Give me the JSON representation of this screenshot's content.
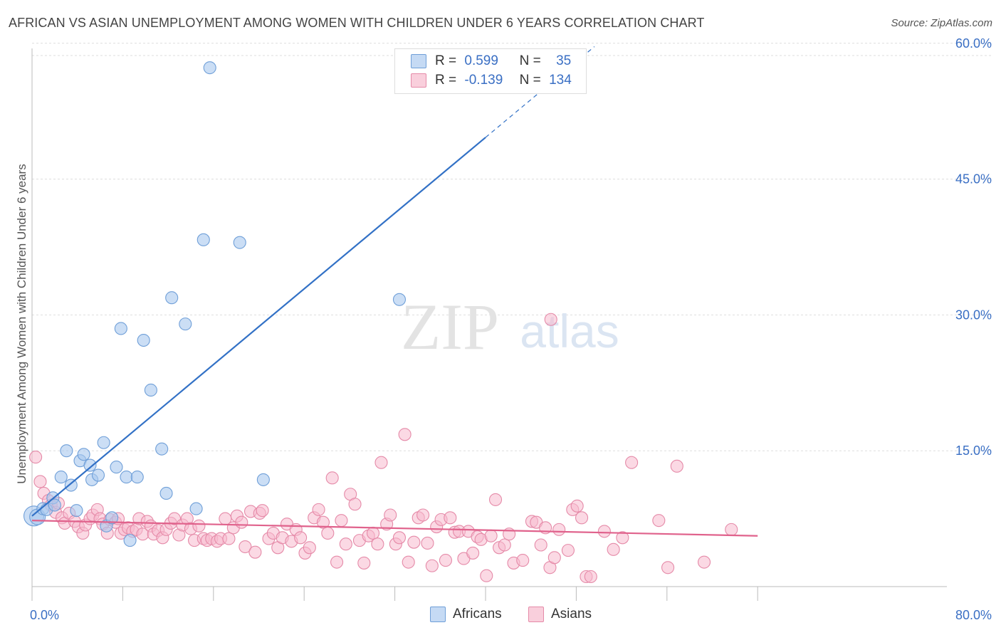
{
  "title": "AFRICAN VS ASIAN UNEMPLOYMENT AMONG WOMEN WITH CHILDREN UNDER 6 YEARS CORRELATION CHART",
  "source": "Source: ZipAtlas.com",
  "watermark": {
    "zip": "ZIP",
    "atlas": "atlas"
  },
  "legend": {
    "africans": {
      "r_label": "R =",
      "r_value": "0.599",
      "n_label": "N =",
      "n_value": "35"
    },
    "asians": {
      "r_label": "R =",
      "r_value": "-0.139",
      "n_label": "N =",
      "n_value": "134"
    }
  },
  "colors": {
    "africans_fill": "#a9c8ef",
    "africans_stroke": "#6f9fd8",
    "africans_line": "#3271c6",
    "asians_fill": "#f7b9cd",
    "asians_stroke": "#e58aa8",
    "asians_line": "#e0628c",
    "grid": "#dddddd",
    "tick_text": "#3a6fc4"
  },
  "chart_data": {
    "type": "scatter",
    "title": "AFRICAN VS ASIAN UNEMPLOYMENT AMONG WOMEN WITH CHILDREN UNDER 6 YEARS CORRELATION CHART",
    "xlabel": "",
    "ylabel": "Unemployment Among Women with Children Under 6 years",
    "xlim": [
      0,
      80
    ],
    "ylim": [
      0,
      62
    ],
    "x_tick_labels": [
      "0.0%",
      "80.0%"
    ],
    "y_ticks": [
      15,
      30,
      45,
      60
    ],
    "y_tick_labels": [
      "15.0%",
      "30.0%",
      "45.0%",
      "60.0%"
    ],
    "legend_position": "bottom",
    "series": [
      {
        "name": "Africans",
        "r": 0.599,
        "n": 35,
        "trend": {
          "x0": 0,
          "y0": 7.8,
          "x1": 50,
          "y1": 49.6,
          "dashed_to_x": 62
        },
        "points": [
          [
            0.2,
            7.8
          ],
          [
            0.6,
            7.7
          ],
          [
            1.2,
            8.6
          ],
          [
            1.6,
            8.5
          ],
          [
            2.3,
            9.8
          ],
          [
            2.5,
            9
          ],
          [
            3.2,
            12.1
          ],
          [
            3.8,
            15
          ],
          [
            4.3,
            11.2
          ],
          [
            4.9,
            8.4
          ],
          [
            5.3,
            13.9
          ],
          [
            5.7,
            14.6
          ],
          [
            6.4,
            13.4
          ],
          [
            6.6,
            11.8
          ],
          [
            7.3,
            12.3
          ],
          [
            7.9,
            15.9
          ],
          [
            8.2,
            6.7
          ],
          [
            8.8,
            7.6
          ],
          [
            9.3,
            13.2
          ],
          [
            9.8,
            28.5
          ],
          [
            10.4,
            12.1
          ],
          [
            10.8,
            5.1
          ],
          [
            11.6,
            12.1
          ],
          [
            12.3,
            27.2
          ],
          [
            13.1,
            21.7
          ],
          [
            14.3,
            15.2
          ],
          [
            14.8,
            10.3
          ],
          [
            15.4,
            31.9
          ],
          [
            16.9,
            29
          ],
          [
            18.1,
            8.6
          ],
          [
            18.9,
            38.3
          ],
          [
            19.6,
            57.3
          ],
          [
            22.9,
            38
          ],
          [
            25.5,
            11.8
          ],
          [
            40.5,
            31.7
          ]
        ]
      },
      {
        "name": "Asians",
        "r": -0.139,
        "n": 134,
        "trend": {
          "x0": 0,
          "y0": 7.3,
          "x1": 80,
          "y1": 5.6
        },
        "points": [
          [
            0.4,
            14.3
          ],
          [
            0.9,
            11.6
          ],
          [
            1.3,
            10.3
          ],
          [
            1.8,
            9.5
          ],
          [
            2.1,
            9
          ],
          [
            2.6,
            8.2
          ],
          [
            2.9,
            9.2
          ],
          [
            3.3,
            7.6
          ],
          [
            3.6,
            7
          ],
          [
            4.1,
            8.1
          ],
          [
            4.7,
            7.2
          ],
          [
            5.1,
            6.6
          ],
          [
            5.6,
            5.9
          ],
          [
            5.9,
            6.8
          ],
          [
            6.4,
            7.5
          ],
          [
            6.7,
            7.9
          ],
          [
            7.2,
            8.5
          ],
          [
            7.5,
            7.5
          ],
          [
            7.8,
            6.9
          ],
          [
            8.3,
            5.9
          ],
          [
            8.6,
            7.4
          ],
          [
            9.2,
            7.1
          ],
          [
            9.5,
            7.5
          ],
          [
            9.8,
            5.9
          ],
          [
            10.2,
            6.3
          ],
          [
            10.6,
            6.5
          ],
          [
            11.1,
            6.1
          ],
          [
            11.5,
            6.3
          ],
          [
            11.8,
            7.5
          ],
          [
            12.2,
            5.8
          ],
          [
            12.7,
            7.2
          ],
          [
            13.1,
            6.7
          ],
          [
            13.4,
            5.8
          ],
          [
            13.9,
            6.2
          ],
          [
            14.4,
            5.4
          ],
          [
            14.8,
            6.3
          ],
          [
            15.3,
            7
          ],
          [
            15.7,
            7.5
          ],
          [
            16.2,
            5.7
          ],
          [
            16.6,
            6.8
          ],
          [
            17.1,
            7.5
          ],
          [
            17.5,
            6.4
          ],
          [
            17.9,
            5.1
          ],
          [
            18.4,
            6.7
          ],
          [
            18.9,
            5.3
          ],
          [
            19.3,
            5.1
          ],
          [
            19.8,
            5.3
          ],
          [
            20.4,
            5
          ],
          [
            20.8,
            5.3
          ],
          [
            21.3,
            7.5
          ],
          [
            21.7,
            5.3
          ],
          [
            22.2,
            6.5
          ],
          [
            22.6,
            7.8
          ],
          [
            23.1,
            7.1
          ],
          [
            23.5,
            4.4
          ],
          [
            24.1,
            8.3
          ],
          [
            24.6,
            3.8
          ],
          [
            25.1,
            8.1
          ],
          [
            25.4,
            8.4
          ],
          [
            26.1,
            5.3
          ],
          [
            26.6,
            5.9
          ],
          [
            27.1,
            4.3
          ],
          [
            27.6,
            5.4
          ],
          [
            28.1,
            6.9
          ],
          [
            28.6,
            5
          ],
          [
            29.1,
            6.3
          ],
          [
            29.6,
            5.4
          ],
          [
            30.1,
            3.7
          ],
          [
            30.6,
            4.3
          ],
          [
            31.1,
            7.6
          ],
          [
            31.6,
            8.5
          ],
          [
            32.1,
            7.1
          ],
          [
            32.6,
            5.9
          ],
          [
            33.1,
            12
          ],
          [
            33.6,
            2.7
          ],
          [
            34.1,
            7.3
          ],
          [
            34.6,
            4.7
          ],
          [
            35.1,
            10.2
          ],
          [
            35.6,
            9.1
          ],
          [
            36.1,
            5.1
          ],
          [
            36.6,
            2.6
          ],
          [
            37.1,
            5.6
          ],
          [
            37.6,
            5.9
          ],
          [
            38.1,
            4.7
          ],
          [
            38.5,
            13.7
          ],
          [
            39.1,
            6.9
          ],
          [
            39.5,
            7.9
          ],
          [
            40.1,
            4.7
          ],
          [
            40.5,
            5.4
          ],
          [
            41.1,
            16.8
          ],
          [
            41.5,
            2.7
          ],
          [
            42.1,
            4.9
          ],
          [
            42.6,
            7.6
          ],
          [
            43.1,
            7.9
          ],
          [
            43.6,
            4.8
          ],
          [
            44.1,
            2.3
          ],
          [
            44.6,
            6.6
          ],
          [
            45.1,
            7.4
          ],
          [
            45.6,
            2.9
          ],
          [
            46.1,
            7.6
          ],
          [
            46.6,
            6
          ],
          [
            47.1,
            6.1
          ],
          [
            47.6,
            3.1
          ],
          [
            48.1,
            6.1
          ],
          [
            48.6,
            3.7
          ],
          [
            49.1,
            5.5
          ],
          [
            49.5,
            5.2
          ],
          [
            50.1,
            1.2
          ],
          [
            50.6,
            5.6
          ],
          [
            51.1,
            9.6
          ],
          [
            51.5,
            4.3
          ],
          [
            52.1,
            4.6
          ],
          [
            52.6,
            5.8
          ],
          [
            53.1,
            2.6
          ],
          [
            54.1,
            2.9
          ],
          [
            55.1,
            7.2
          ],
          [
            55.6,
            7.1
          ],
          [
            56.1,
            4.6
          ],
          [
            56.6,
            6.5
          ],
          [
            57.1,
            2.1
          ],
          [
            57.6,
            3.2
          ],
          [
            58.1,
            6.3
          ],
          [
            59.1,
            4
          ],
          [
            59.6,
            8.5
          ],
          [
            60.1,
            8.9
          ],
          [
            60.6,
            7.6
          ],
          [
            61.1,
            1.1
          ],
          [
            61.6,
            1.1
          ],
          [
            63.1,
            6.1
          ],
          [
            64.1,
            4.1
          ],
          [
            65.1,
            5.4
          ],
          [
            66.1,
            13.7
          ],
          [
            69.1,
            7.3
          ],
          [
            70.1,
            2.1
          ],
          [
            71.1,
            13.3
          ],
          [
            74.1,
            2.7
          ],
          [
            77.1,
            6.3
          ],
          [
            57.2,
            29.5
          ]
        ]
      }
    ]
  }
}
